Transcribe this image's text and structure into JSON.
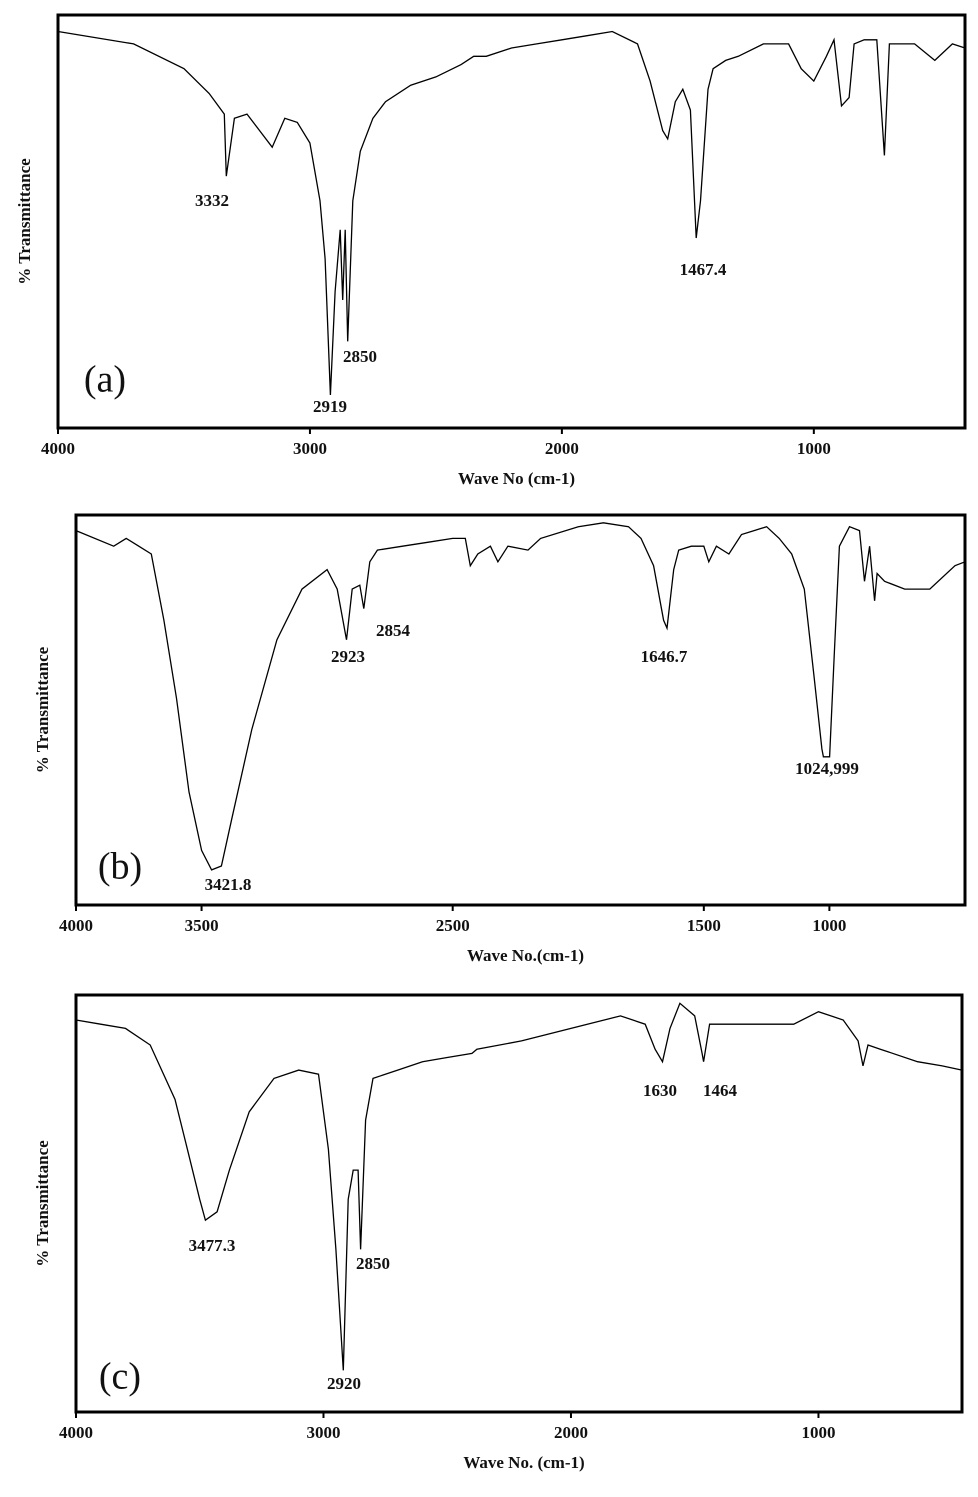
{
  "chart_data": [
    {
      "type": "line",
      "panel_label": "(a)",
      "ylabel": "% Transmittance",
      "xlabel": "Wave No (cm-1)",
      "xlim": [
        4000,
        400
      ],
      "ylim": [
        0,
        100
      ],
      "xticks": [
        4000,
        3000,
        2000,
        1000
      ],
      "annotations": [
        "3332",
        "2919",
        "2850",
        "1467.4"
      ],
      "series": [
        {
          "color": "#000000",
          "x": [
            4000,
            3700,
            3500,
            3400,
            3340,
            3332,
            3300,
            3250,
            3200,
            3150,
            3100,
            3050,
            3000,
            2960,
            2940,
            2919,
            2900,
            2880,
            2870,
            2860,
            2850,
            2830,
            2800,
            2750,
            2700,
            2600,
            2500,
            2400,
            2350,
            2300,
            2200,
            2100,
            2000,
            1900,
            1800,
            1700,
            1650,
            1600,
            1580,
            1550,
            1520,
            1490,
            1467,
            1450,
            1420,
            1400,
            1350,
            1300,
            1200,
            1100,
            1050,
            1000,
            950,
            920,
            890,
            860,
            840,
            800,
            750,
            720,
            700,
            600,
            520,
            450,
            400
          ],
          "values": [
            96,
            93,
            87,
            81,
            76,
            61,
            75,
            76,
            72,
            68,
            75,
            74,
            69,
            55,
            41,
            8,
            33,
            48,
            31,
            48,
            21,
            55,
            67,
            75,
            79,
            83,
            85,
            88,
            90,
            90,
            92,
            93,
            94,
            95,
            96,
            93,
            84,
            72,
            70,
            79,
            82,
            77,
            46,
            55,
            82,
            87,
            89,
            90,
            93,
            93,
            87,
            84,
            90,
            94,
            78,
            80,
            93,
            94,
            94,
            66,
            93,
            93,
            89,
            93,
            92
          ]
        }
      ]
    },
    {
      "type": "line",
      "panel_label": "(b)",
      "ylabel": "% Transmittance",
      "xlabel": "Wave No.(cm-1)",
      "xlim": [
        4000,
        460
      ],
      "ylim": [
        0,
        100
      ],
      "xticks": [
        4000,
        3500,
        2500,
        1500,
        1000
      ],
      "annotations": [
        "2923",
        "2854",
        "1646.7",
        "1024,999",
        "3421.8"
      ],
      "series": [
        {
          "color": "#000000",
          "x": [
            4000,
            3850,
            3800,
            3750,
            3700,
            3650,
            3600,
            3550,
            3500,
            3460,
            3421,
            3380,
            3300,
            3200,
            3100,
            3000,
            2960,
            2923,
            2900,
            2870,
            2854,
            2830,
            2800,
            2700,
            2600,
            2500,
            2450,
            2430,
            2400,
            2350,
            2320,
            2280,
            2200,
            2150,
            2000,
            1900,
            1800,
            1750,
            1700,
            1660,
            1646.7,
            1620,
            1600,
            1550,
            1500,
            1480,
            1450,
            1400,
            1350,
            1300,
            1250,
            1200,
            1150,
            1100,
            1060,
            1030,
            1024,
            999,
            980,
            960,
            920,
            880,
            860,
            840,
            820,
            810,
            780,
            700,
            600,
            500,
            460
          ],
          "values": [
            96,
            92,
            94,
            92,
            90,
            73,
            53,
            29,
            14,
            9,
            10,
            22,
            45,
            68,
            81,
            86,
            81,
            68,
            81,
            82,
            76,
            88,
            91,
            92,
            93,
            94,
            94,
            87,
            90,
            92,
            88,
            92,
            91,
            94,
            97,
            98,
            97,
            94,
            87,
            73,
            71,
            86,
            91,
            92,
            92,
            88,
            92,
            90,
            95,
            96,
            97,
            94,
            90,
            81,
            58,
            40,
            38,
            38,
            65,
            92,
            97,
            96,
            83,
            92,
            78,
            85,
            83,
            81,
            81,
            87,
            88
          ]
        }
      ]
    },
    {
      "type": "line",
      "panel_label": "(c)",
      "ylabel": "% Transmittance",
      "xlabel": "Wave No. (cm-1)",
      "xlim": [
        4000,
        420
      ],
      "ylim": [
        0,
        100
      ],
      "xticks": [
        4000,
        3000,
        2000,
        1000
      ],
      "annotations": [
        "3477.3",
        "2920",
        "2850",
        "1630",
        "1464"
      ],
      "series": [
        {
          "color": "#000000",
          "x": [
            4000,
            3900,
            3800,
            3700,
            3600,
            3550,
            3500,
            3477,
            3430,
            3380,
            3300,
            3200,
            3100,
            3020,
            2980,
            2950,
            2920,
            2900,
            2880,
            2860,
            2850,
            2830,
            2800,
            2700,
            2600,
            2500,
            2400,
            2380,
            2200,
            2000,
            1800,
            1700,
            1660,
            1630,
            1600,
            1560,
            1500,
            1470,
            1464,
            1440,
            1300,
            1100,
            1000,
            900,
            840,
            820,
            800,
            750,
            600,
            500,
            420
          ],
          "values": [
            94,
            93,
            92,
            88,
            75,
            63,
            51,
            46,
            48,
            58,
            72,
            80,
            82,
            81,
            63,
            39,
            10,
            51,
            58,
            58,
            39,
            70,
            80,
            82,
            84,
            85,
            86,
            87,
            89,
            92,
            95,
            93,
            87,
            84,
            92,
            98,
            95,
            86,
            84,
            93,
            93,
            93,
            96,
            94,
            89,
            83,
            88,
            87,
            84,
            83,
            82
          ]
        }
      ]
    }
  ]
}
